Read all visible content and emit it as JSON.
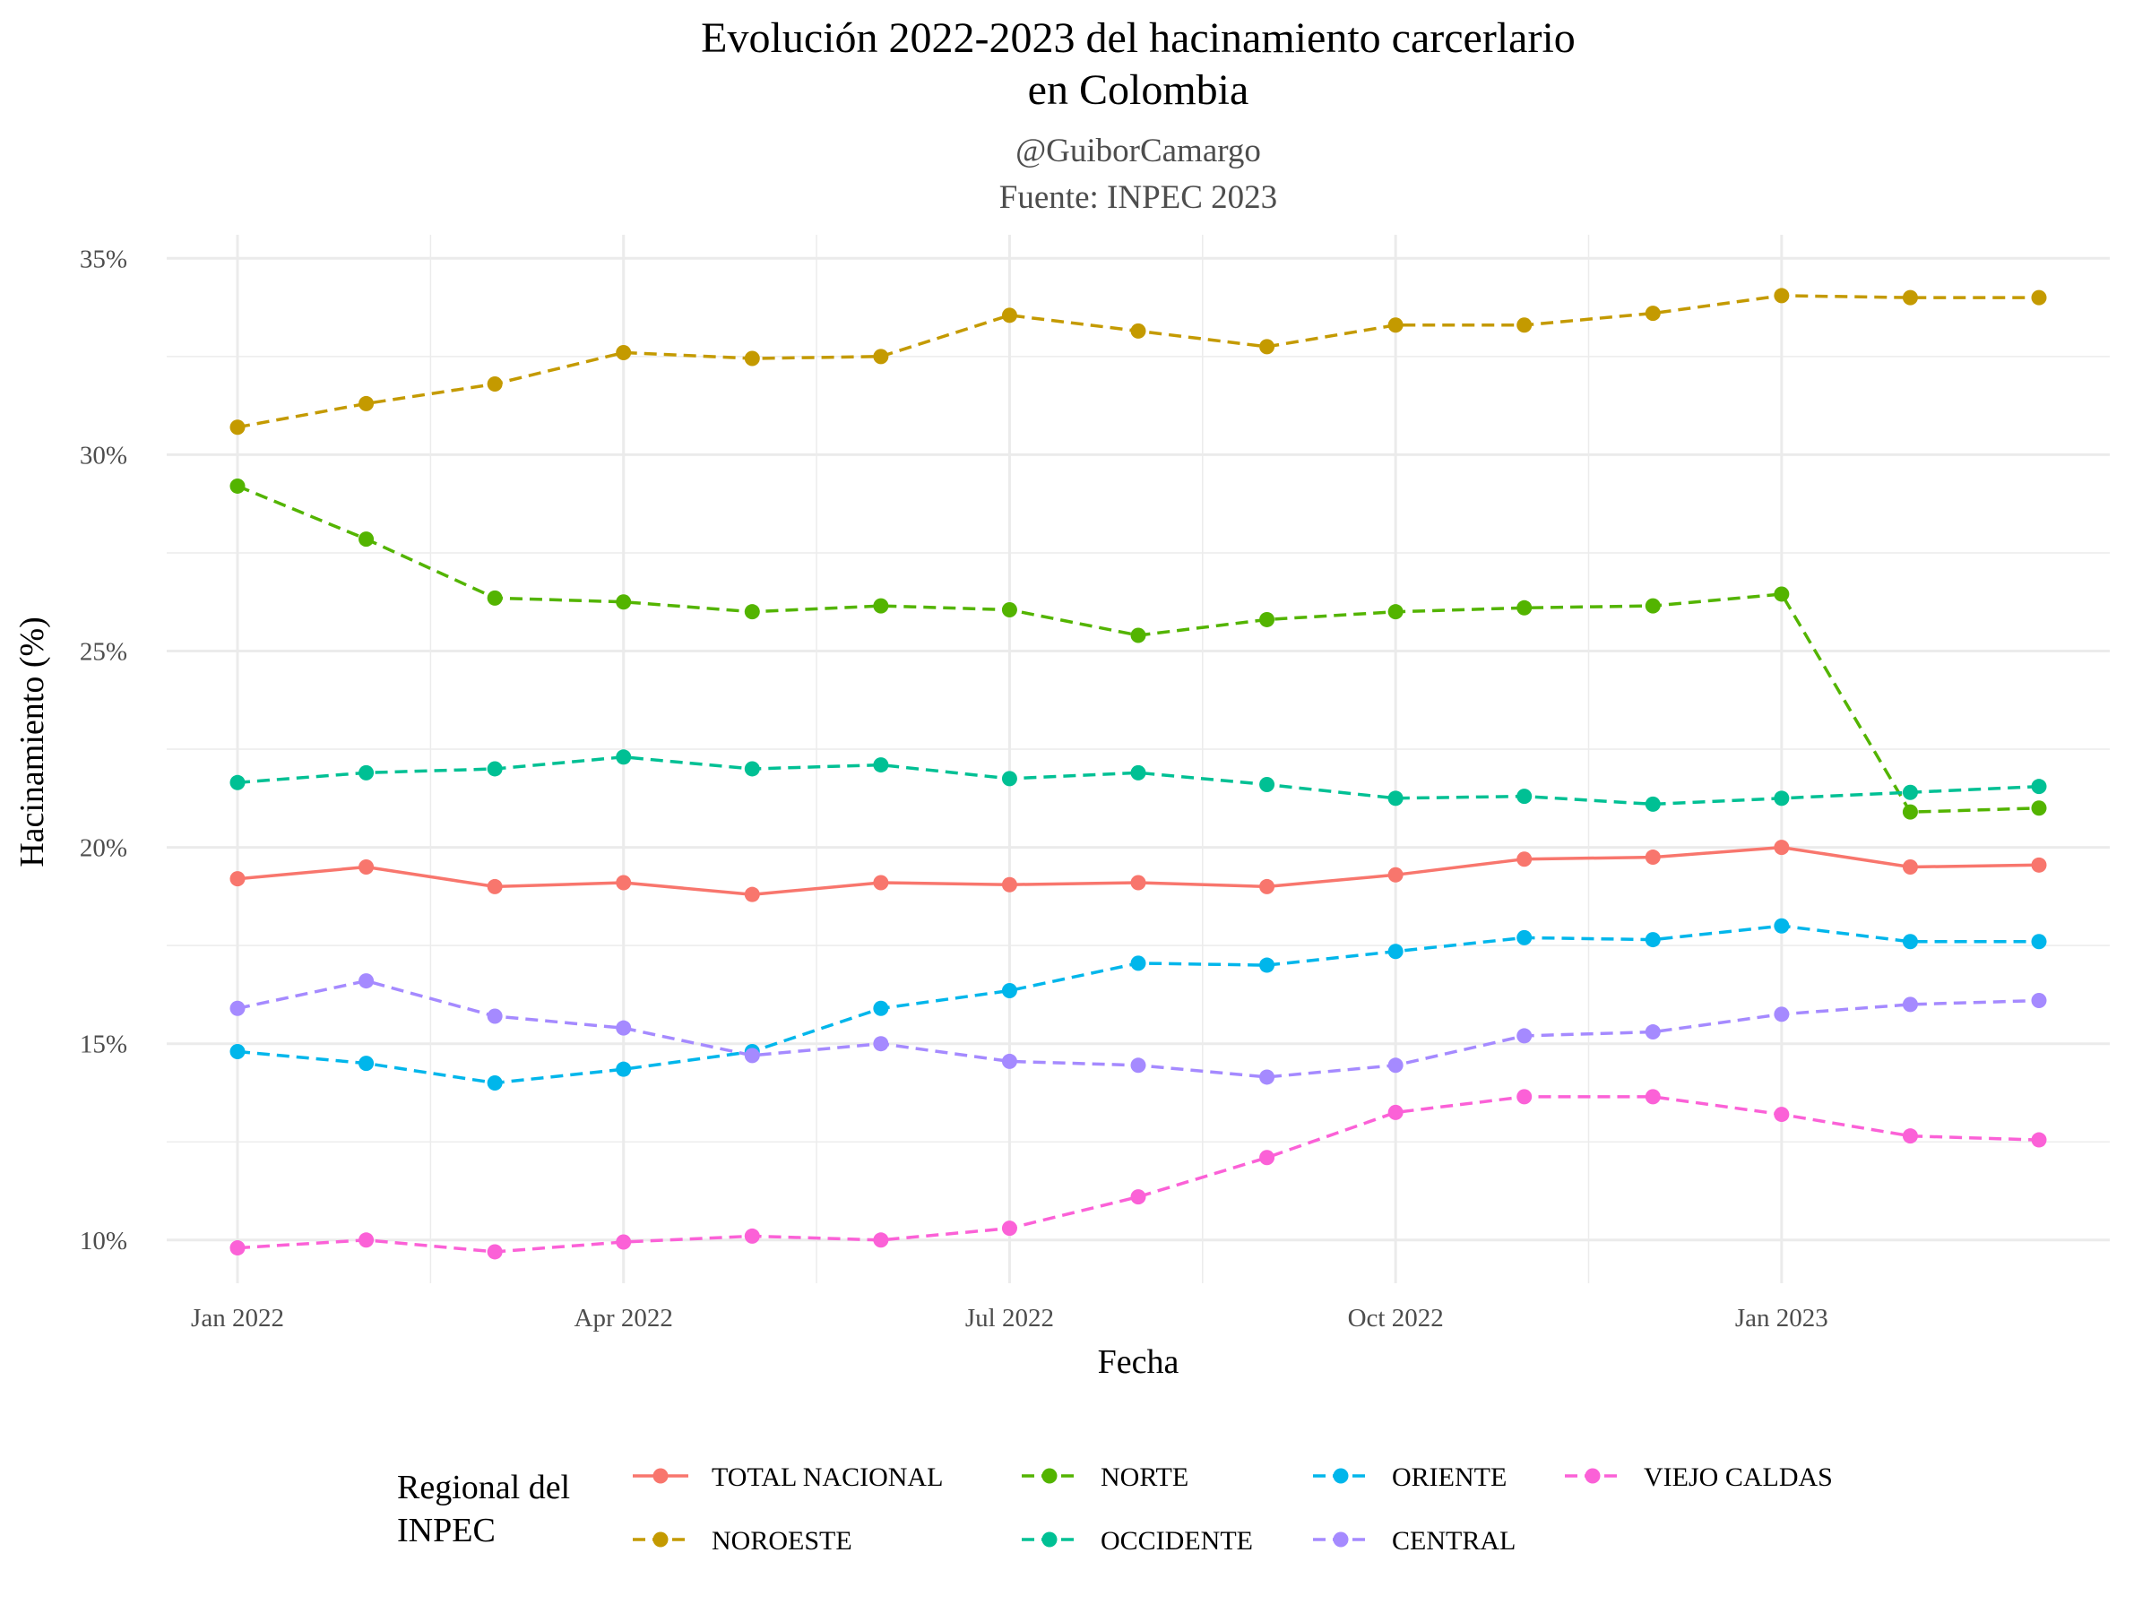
{
  "chart_data": {
    "type": "line",
    "title_lines": [
      "Evolución 2022-2023 del hacinamiento carcerlario",
      "en Colombia"
    ],
    "subtitle_lines": [
      "@GuiborCamargo",
      "Fuente: INPEC 2023"
    ],
    "xlabel": "Fecha",
    "ylabel": "Hacinamiento (%)",
    "x": [
      "2022-01",
      "2022-02",
      "2022-03",
      "2022-04",
      "2022-05",
      "2022-06",
      "2022-07",
      "2022-08",
      "2022-09",
      "2022-10",
      "2022-11",
      "2022-12",
      "2023-01",
      "2023-02",
      "2023-03"
    ],
    "x_ticks": [
      {
        "value": "2022-01",
        "label": "Jan 2022"
      },
      {
        "value": "2022-04",
        "label": "Apr 2022"
      },
      {
        "value": "2022-07",
        "label": "Jul 2022"
      },
      {
        "value": "2022-10",
        "label": "Oct 2022"
      },
      {
        "value": "2023-01",
        "label": "Jan 2023"
      }
    ],
    "y_ticks": [
      {
        "value": 10,
        "label": "10%"
      },
      {
        "value": 15,
        "label": "15%"
      },
      {
        "value": 20,
        "label": "20%"
      },
      {
        "value": 25,
        "label": "25%"
      },
      {
        "value": 30,
        "label": "30%"
      },
      {
        "value": 35,
        "label": "35%"
      }
    ],
    "ylim": [
      8.9,
      35.6
    ],
    "grid": true,
    "legend_title_lines": [
      "Regional del",
      "INPEC"
    ],
    "legend_position": "bottom",
    "series": [
      {
        "name": "TOTAL NACIONAL",
        "color": "#F8766D",
        "dash": "solid",
        "values": [
          19.2,
          19.5,
          19.0,
          19.1,
          18.8,
          19.1,
          19.05,
          19.1,
          19.0,
          19.3,
          19.7,
          19.75,
          20.0,
          19.5,
          19.55
        ]
      },
      {
        "name": "NOROESTE",
        "color": "#C49A00",
        "dash": "dashed",
        "values": [
          30.7,
          31.3,
          31.8,
          32.6,
          32.45,
          32.5,
          33.55,
          33.15,
          32.75,
          33.3,
          33.3,
          33.6,
          34.05,
          34.0,
          34.0
        ]
      },
      {
        "name": "NORTE",
        "color": "#53B400",
        "dash": "dashed",
        "values": [
          29.2,
          27.85,
          26.35,
          26.25,
          26.0,
          26.15,
          26.05,
          25.4,
          25.8,
          26.0,
          26.1,
          26.15,
          26.45,
          20.9,
          21.0
        ]
      },
      {
        "name": "OCCIDENTE",
        "color": "#00C094",
        "dash": "dashed",
        "values": [
          21.65,
          21.9,
          22.0,
          22.3,
          22.0,
          22.1,
          21.75,
          21.9,
          21.6,
          21.25,
          21.3,
          21.1,
          21.25,
          21.4,
          21.55
        ]
      },
      {
        "name": "ORIENTE",
        "color": "#00B6EB",
        "dash": "dashed",
        "values": [
          14.8,
          14.5,
          14.0,
          14.35,
          14.8,
          15.9,
          16.35,
          17.05,
          17.0,
          17.35,
          17.7,
          17.65,
          18.0,
          17.6,
          17.6
        ]
      },
      {
        "name": "CENTRAL",
        "color": "#A58AFF",
        "dash": "dashed",
        "values": [
          15.9,
          16.6,
          15.7,
          15.4,
          14.7,
          15.0,
          14.55,
          14.45,
          14.15,
          14.45,
          15.2,
          15.3,
          15.75,
          16.0,
          16.1
        ]
      },
      {
        "name": "VIEJO CALDAS",
        "color": "#FB61D7",
        "dash": "dashed",
        "values": [
          9.8,
          10.0,
          9.7,
          9.95,
          10.1,
          10.0,
          10.3,
          11.1,
          12.1,
          13.25,
          13.65,
          13.65,
          13.2,
          12.65,
          12.55
        ]
      }
    ]
  }
}
